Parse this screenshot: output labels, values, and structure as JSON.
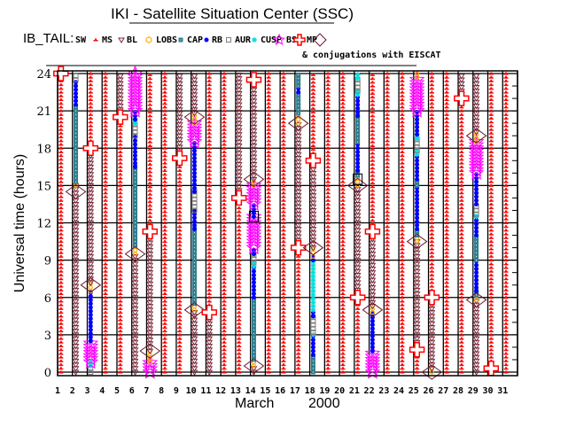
{
  "chart_data": {
    "type": "scatter",
    "title": "IKI - Satellite Situation Center (SSC)",
    "satellite_label": "IB_TAIL:",
    "legend": [
      {
        "code": "SW",
        "label": "SW",
        "color": "#ff0000"
      },
      {
        "code": "MS",
        "label": "MS",
        "color": "#7a2a3a"
      },
      {
        "code": "BL",
        "label": "BL",
        "color": "#ffaa00"
      },
      {
        "code": "LOBS",
        "label": "LOBS",
        "color": "#2f7f8f"
      },
      {
        "code": "CAP",
        "label": "CAP",
        "color": "#0000ff"
      },
      {
        "code": "RB",
        "label": "RB",
        "color": "#808080"
      },
      {
        "code": "AUR",
        "label": "AUR",
        "color": "#00e0e0"
      },
      {
        "code": "CUSP",
        "label": "CUSP",
        "color": "#ff00ff"
      },
      {
        "code": "BS",
        "label": "BS",
        "color": "#ff0000"
      },
      {
        "code": "MP",
        "label": "MP",
        "color": "#6a1a2a"
      }
    ],
    "conjugation_note": "& conjugations with EISCAT",
    "xlabel_month": "March",
    "xlabel_year": "2000",
    "ylabel": "Universal time (hours)",
    "x_ticks": [
      "1",
      "2",
      "3",
      "4",
      "5",
      "6",
      "7",
      "8",
      "9",
      "10",
      "11",
      "12",
      "13",
      "14",
      "15",
      "16",
      "17",
      "18",
      "19",
      "20",
      "21",
      "22",
      "23",
      "24",
      "25",
      "26",
      "27",
      "28",
      "29",
      "30",
      "31"
    ],
    "y_ticks": [
      "0",
      "3",
      "6",
      "9",
      "12",
      "15",
      "18",
      "21",
      "24"
    ],
    "ylim": [
      0,
      24
    ],
    "grid": true,
    "days": [
      {
        "day": 1,
        "segments": [
          [
            0,
            24,
            "SW"
          ]
        ],
        "events": [
          [
            24,
            "BS"
          ]
        ]
      },
      {
        "day": 2,
        "segments": [
          [
            0,
            15,
            "MS"
          ],
          [
            15,
            15.3,
            "BL"
          ],
          [
            15.3,
            21.5,
            "LOBS"
          ],
          [
            21.5,
            23.5,
            "CAP"
          ],
          [
            23.5,
            24,
            "RB"
          ]
        ],
        "events": [
          [
            14.5,
            "MP"
          ]
        ]
      },
      {
        "day": 3,
        "segments": [
          [
            0,
            0.5,
            "RB"
          ],
          [
            0.5,
            0.8,
            "AUR"
          ],
          [
            0.8,
            2.5,
            "CUSP"
          ],
          [
            2.5,
            6.5,
            "CAP"
          ],
          [
            6.5,
            7.2,
            "BL"
          ],
          [
            7.2,
            18,
            "MS"
          ],
          [
            18,
            24,
            "SW"
          ]
        ],
        "events": [
          [
            7,
            "MP"
          ],
          [
            18,
            "BS"
          ]
        ]
      },
      {
        "day": 4,
        "segments": [
          [
            0,
            24,
            "SW"
          ]
        ],
        "events": []
      },
      {
        "day": 5,
        "segments": [
          [
            0,
            20.5,
            "SW"
          ],
          [
            20.5,
            24,
            "MS"
          ]
        ],
        "events": [
          [
            20.5,
            "BS"
          ]
        ]
      },
      {
        "day": 6,
        "segments": [
          [
            0,
            9.5,
            "MS"
          ],
          [
            9.5,
            10.2,
            "BL"
          ],
          [
            10.2,
            16.5,
            "LOBS"
          ],
          [
            16.5,
            19,
            "CAP"
          ],
          [
            19,
            20,
            "RB"
          ],
          [
            20,
            20.3,
            "AUR"
          ],
          [
            20.3,
            21,
            "CAP"
          ],
          [
            21,
            24,
            "CUSP"
          ]
        ],
        "events": [
          [
            9.5,
            "MP"
          ]
        ]
      },
      {
        "day": 7,
        "segments": [
          [
            0,
            0.8,
            "CUSP"
          ],
          [
            0.8,
            1.7,
            "BL"
          ],
          [
            1.7,
            11.3,
            "MS"
          ],
          [
            11.3,
            24,
            "SW"
          ]
        ],
        "events": [
          [
            1.7,
            "MP"
          ],
          [
            11.3,
            "BS"
          ]
        ]
      },
      {
        "day": 8,
        "segments": [
          [
            0,
            24,
            "SW"
          ]
        ],
        "events": []
      },
      {
        "day": 9,
        "segments": [
          [
            0,
            17.2,
            "SW"
          ],
          [
            17.2,
            24,
            "MS"
          ]
        ],
        "events": [
          [
            17.2,
            "BS"
          ]
        ]
      },
      {
        "day": 10,
        "segments": [
          [
            0,
            5,
            "MS"
          ],
          [
            5,
            5.5,
            "BL"
          ],
          [
            5.5,
            11.5,
            "LOBS"
          ],
          [
            11.5,
            13,
            "CAP"
          ],
          [
            13,
            14.5,
            "RB"
          ],
          [
            14.5,
            18.5,
            "CAP"
          ],
          [
            18.5,
            20,
            "CUSP"
          ],
          [
            20,
            20.8,
            "BL"
          ],
          [
            20.8,
            24,
            "MS"
          ]
        ],
        "events": [
          [
            5,
            "MP"
          ],
          [
            20.5,
            "MP"
          ]
        ]
      },
      {
        "day": 11,
        "segments": [
          [
            0,
            4.8,
            "MS"
          ],
          [
            4.8,
            24,
            "SW"
          ]
        ],
        "events": [
          [
            4.8,
            "BS"
          ]
        ]
      },
      {
        "day": 12,
        "segments": [
          [
            0,
            24,
            "SW"
          ]
        ],
        "events": []
      },
      {
        "day": 13,
        "segments": [
          [
            0,
            14,
            "SW"
          ],
          [
            14,
            24,
            "MS"
          ]
        ],
        "events": [
          [
            14,
            "BS"
          ]
        ]
      },
      {
        "day": 14,
        "segments": [
          [
            0,
            0.5,
            "MS"
          ],
          [
            0.5,
            1,
            "BL"
          ],
          [
            1,
            6,
            "LOBS"
          ],
          [
            6,
            8.5,
            "CAP"
          ],
          [
            8.5,
            8.8,
            "AUR"
          ],
          [
            8.8,
            9.5,
            "RB"
          ],
          [
            9.5,
            10,
            "CAP"
          ],
          [
            10,
            12.5,
            "CUSP"
          ],
          [
            12.5,
            13.5,
            "CAP"
          ],
          [
            13.5,
            15,
            "CUSP"
          ],
          [
            15,
            15.5,
            "BL"
          ],
          [
            15.5,
            24,
            "MS"
          ]
        ],
        "events": [
          [
            0.5,
            "MP"
          ],
          [
            15.5,
            "MP"
          ],
          [
            23.5,
            "BS"
          ],
          [
            12.5,
            "EISCAT"
          ]
        ]
      },
      {
        "day": 15,
        "segments": [
          [
            0,
            24,
            "SW"
          ]
        ],
        "events": []
      },
      {
        "day": 16,
        "segments": [
          [
            0,
            24,
            "SW"
          ]
        ],
        "events": []
      },
      {
        "day": 17,
        "segments": [
          [
            0,
            10,
            "SW"
          ],
          [
            10,
            20,
            "MS"
          ],
          [
            20,
            20.8,
            "BL"
          ],
          [
            20.8,
            22.5,
            "LOBS"
          ],
          [
            22.5,
            23,
            "CAP"
          ],
          [
            23,
            24,
            "LOBS"
          ]
        ],
        "events": [
          [
            10,
            "BS"
          ],
          [
            20,
            "MP"
          ]
        ]
      },
      {
        "day": 18,
        "segments": [
          [
            0,
            1.4,
            "LOBS"
          ],
          [
            1.4,
            3,
            "CAP"
          ],
          [
            3,
            3.2,
            "AUR"
          ],
          [
            3.2,
            4.5,
            "RB"
          ],
          [
            4.5,
            5,
            "CAP"
          ],
          [
            5,
            9,
            "AUR"
          ],
          [
            9,
            9.3,
            "CAP"
          ],
          [
            9.3,
            10,
            "BL"
          ],
          [
            10,
            17,
            "MS"
          ],
          [
            17,
            24,
            "SW"
          ]
        ],
        "events": [
          [
            10,
            "MP"
          ],
          [
            17,
            "BS"
          ]
        ]
      },
      {
        "day": 19,
        "segments": [
          [
            0,
            24,
            "SW"
          ]
        ],
        "events": []
      },
      {
        "day": 20,
        "segments": [
          [
            0,
            24,
            "SW"
          ]
        ],
        "events": []
      },
      {
        "day": 21,
        "segments": [
          [
            0,
            6,
            "SW"
          ],
          [
            6,
            15,
            "MS"
          ],
          [
            15,
            15.8,
            "BL"
          ],
          [
            15.8,
            16.2,
            "LOBS"
          ],
          [
            16.2,
            18.5,
            "CAP"
          ],
          [
            18.5,
            20.6,
            "LOBS"
          ],
          [
            20.6,
            22.3,
            "CAP"
          ],
          [
            22.3,
            22.6,
            "AUR"
          ],
          [
            22.6,
            23.6,
            "RB"
          ],
          [
            23.6,
            24,
            "AUR"
          ]
        ],
        "events": [
          [
            6,
            "BS"
          ],
          [
            15,
            "MP"
          ],
          [
            15.5,
            "EISCAT"
          ]
        ]
      },
      {
        "day": 22,
        "segments": [
          [
            0,
            1.7,
            "CUSP"
          ],
          [
            1.7,
            4.8,
            "CAP"
          ],
          [
            4.8,
            5.3,
            "BL"
          ],
          [
            5.3,
            11.3,
            "MS"
          ],
          [
            11.3,
            24,
            "SW"
          ]
        ],
        "events": [
          [
            5,
            "MP"
          ],
          [
            11.3,
            "BS"
          ]
        ]
      },
      {
        "day": 23,
        "segments": [
          [
            0,
            24,
            "SW"
          ]
        ],
        "events": []
      },
      {
        "day": 24,
        "segments": [
          [
            0,
            24,
            "SW"
          ]
        ],
        "events": []
      },
      {
        "day": 25,
        "segments": [
          [
            0,
            1.8,
            "SW"
          ],
          [
            1.8,
            10.5,
            "MS"
          ],
          [
            10.5,
            11,
            "BL"
          ],
          [
            11,
            11.5,
            "LOBS"
          ],
          [
            11.5,
            15,
            "CAP"
          ],
          [
            15,
            15.5,
            "LOBS"
          ],
          [
            15.5,
            17.5,
            "CAP"
          ],
          [
            17.5,
            17.8,
            "AUR"
          ],
          [
            17.8,
            18.8,
            "RB"
          ],
          [
            18.8,
            19.1,
            "AUR"
          ],
          [
            19.1,
            21,
            "CAP"
          ],
          [
            21,
            23.7,
            "CUSP"
          ],
          [
            23.7,
            24,
            "BL"
          ]
        ],
        "events": [
          [
            1.8,
            "BS"
          ],
          [
            10.5,
            "MP"
          ]
        ]
      },
      {
        "day": 26,
        "segments": [
          [
            0,
            0.3,
            "BL"
          ],
          [
            0.3,
            6,
            "MS"
          ],
          [
            6,
            24,
            "SW"
          ]
        ],
        "events": [
          [
            0,
            "MP"
          ],
          [
            6,
            "BS"
          ]
        ]
      },
      {
        "day": 27,
        "segments": [
          [
            0,
            24,
            "SW"
          ]
        ],
        "events": []
      },
      {
        "day": 28,
        "segments": [
          [
            0,
            22,
            "SW"
          ],
          [
            22,
            24,
            "MS"
          ]
        ],
        "events": [
          [
            22,
            "BS"
          ]
        ]
      },
      {
        "day": 29,
        "segments": [
          [
            0,
            5.8,
            "MS"
          ],
          [
            5.8,
            6.2,
            "BL"
          ],
          [
            6.2,
            6.5,
            "LOBS"
          ],
          [
            6.5,
            9,
            "CAP"
          ],
          [
            9,
            11,
            "LOBS"
          ],
          [
            11,
            12.5,
            "CAP"
          ],
          [
            12.5,
            12.7,
            "AUR"
          ],
          [
            12.7,
            13.5,
            "RB"
          ],
          [
            13.5,
            16,
            "CAP"
          ],
          [
            16,
            18.5,
            "CUSP"
          ],
          [
            18.5,
            19.3,
            "BL"
          ],
          [
            19.3,
            24,
            "MS"
          ]
        ],
        "events": [
          [
            5.8,
            "MP"
          ],
          [
            19,
            "MP"
          ]
        ]
      },
      {
        "day": 30,
        "segments": [
          [
            0,
            0.3,
            "MS"
          ],
          [
            0.3,
            24,
            "SW"
          ]
        ],
        "events": [
          [
            0.3,
            "BS"
          ]
        ]
      },
      {
        "day": 31,
        "segments": [
          [
            0,
            24,
            "SW"
          ]
        ],
        "events": []
      }
    ]
  }
}
